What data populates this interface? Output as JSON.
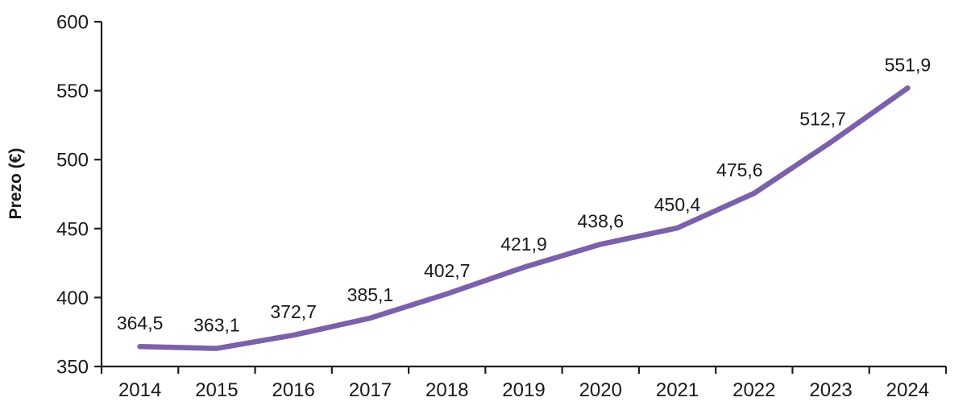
{
  "chart_data": {
    "type": "line",
    "title": "",
    "xlabel": "",
    "ylabel": "Prezo (€)",
    "categories": [
      "2014",
      "2015",
      "2016",
      "2017",
      "2018",
      "2019",
      "2020",
      "2021",
      "2022",
      "2023",
      "2024"
    ],
    "series": [
      {
        "name": "Prezo (€)",
        "values": [
          364.5,
          363.1,
          372.7,
          385.1,
          402.7,
          421.9,
          438.6,
          450.4,
          475.6,
          512.7,
          551.9
        ]
      }
    ],
    "data_labels": [
      "364,5",
      "363,1",
      "372,7",
      "385,1",
      "402,7",
      "421,9",
      "438,6",
      "450,4",
      "475,6",
      "512,7",
      "551,9"
    ],
    "ylim": [
      350,
      600
    ],
    "ytick_interval": 50,
    "yticks": [
      350,
      400,
      450,
      500,
      550,
      600
    ],
    "ytick_labels": [
      "350",
      "400",
      "450",
      "500",
      "550",
      "600"
    ],
    "grid": false,
    "legend_position": "none",
    "decimal_separator": ",",
    "colors": {
      "line": "#7C60A9",
      "axis": "#1f1f1f",
      "text": "#1a1a1a",
      "background": "#ffffff"
    }
  }
}
